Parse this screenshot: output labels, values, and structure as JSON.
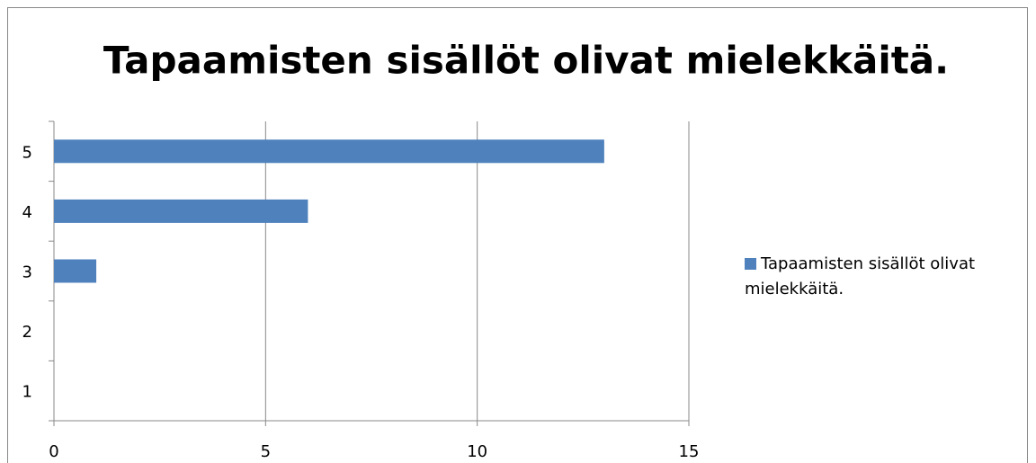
{
  "chart_data": {
    "type": "hbar",
    "title": "Tapaamisten sisällöt olivat mielekkäitä.",
    "categories": [
      "1",
      "2",
      "3",
      "4",
      "5"
    ],
    "series": [
      {
        "name": "Tapaamisten sisällöt olivat mielekkäitä.",
        "color": "#4f81bd",
        "values": [
          0,
          0,
          1,
          6,
          13
        ]
      }
    ],
    "xlim": [
      0,
      15
    ],
    "xticks": [
      0,
      5,
      10,
      15
    ],
    "grid": true,
    "legend": "right"
  }
}
